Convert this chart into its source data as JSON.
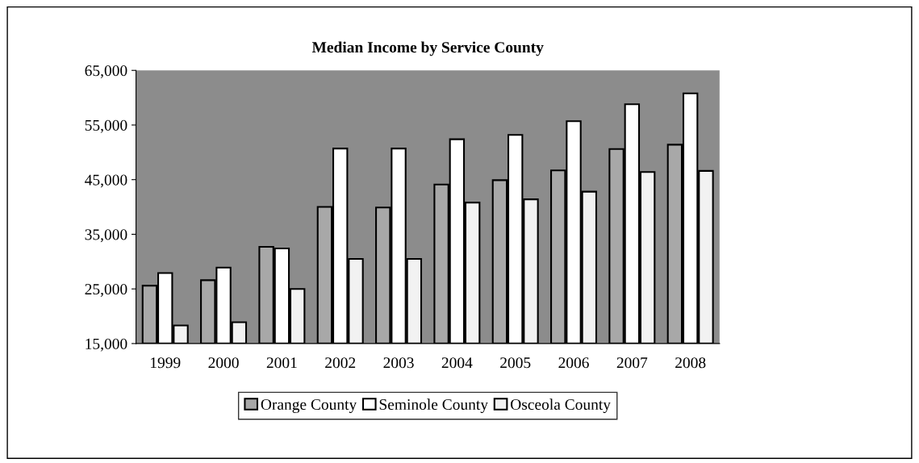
{
  "chart_data": {
    "type": "bar",
    "title": "Median Income by Service County",
    "categories": [
      "1999",
      "2000",
      "2001",
      "2002",
      "2003",
      "2004",
      "2005",
      "2006",
      "2007",
      "2008"
    ],
    "series": [
      {
        "name": "Orange County",
        "color": "#a8a8a8",
        "values": [
          25600,
          26600,
          32700,
          40000,
          39900,
          44100,
          44900,
          46700,
          50600,
          51400
        ]
      },
      {
        "name": "Seminole County",
        "color": "#ffffff",
        "values": [
          27900,
          28900,
          32400,
          50700,
          50700,
          52400,
          53200,
          55700,
          58800,
          60800
        ]
      },
      {
        "name": "Osceola County",
        "color": "#f2f2f2",
        "values": [
          18300,
          18900,
          25000,
          30500,
          30500,
          40800,
          41400,
          42800,
          46400,
          46600
        ]
      }
    ],
    "ylim": [
      15000,
      65000
    ],
    "yticks": [
      {
        "value": 15000,
        "label": "15,000"
      },
      {
        "value": 25000,
        "label": "25,000"
      },
      {
        "value": 35000,
        "label": "35,000"
      },
      {
        "value": 45000,
        "label": "45,000"
      },
      {
        "value": 55000,
        "label": "55,000"
      },
      {
        "value": 65000,
        "label": "65,000"
      }
    ],
    "grid": false,
    "legend": "bottom"
  }
}
